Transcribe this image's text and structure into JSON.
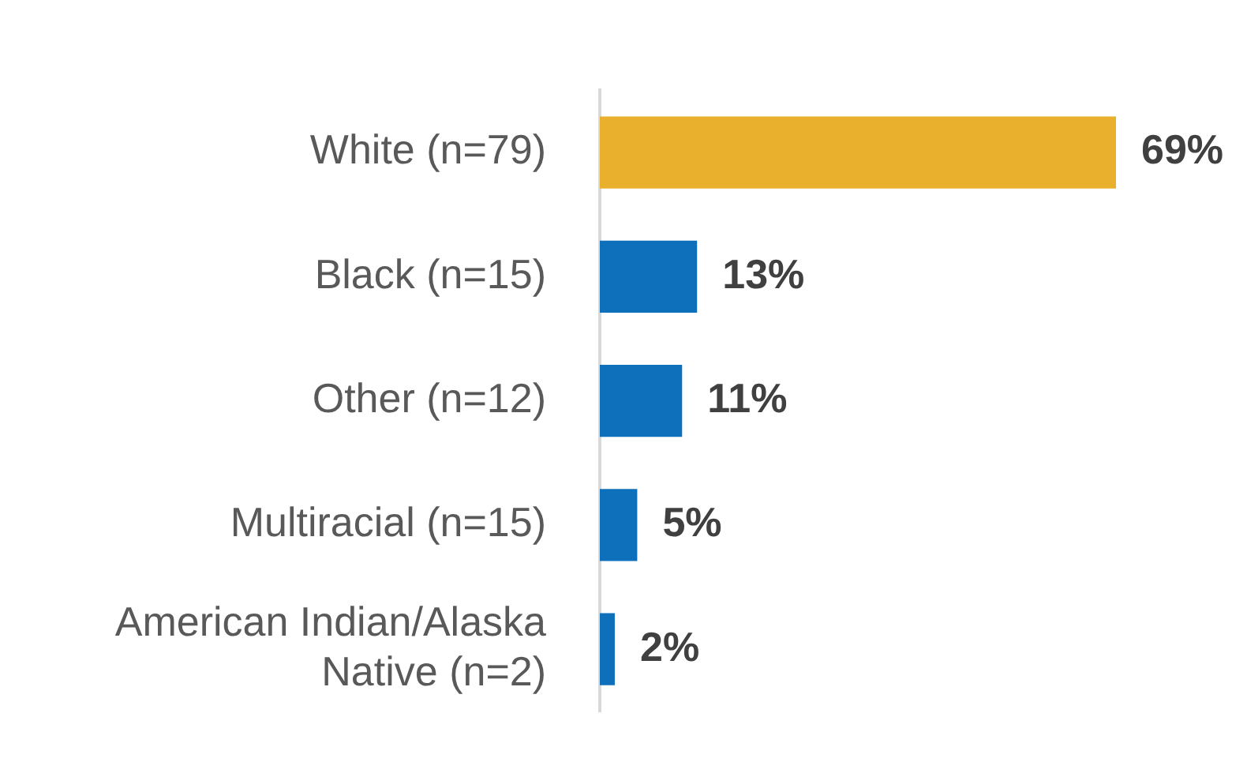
{
  "chart_data": {
    "type": "bar",
    "orientation": "horizontal",
    "categories": [
      "White (n=79)",
      "Black (n=15)",
      "Other (n=12)",
      "Multiracial (n=15)",
      "American Indian/Alaska Native (n=2)"
    ],
    "values": [
      69,
      13,
      11,
      5,
      2
    ],
    "colors": [
      "#e8b02c",
      "#0e6fba",
      "#0e6fba",
      "#0e6fba",
      "#0e6fba"
    ],
    "value_labels": [
      "69%",
      "13%",
      "11%",
      "5%",
      "2%"
    ],
    "tick_labels": "y",
    "grid": false,
    "legend": false
  }
}
